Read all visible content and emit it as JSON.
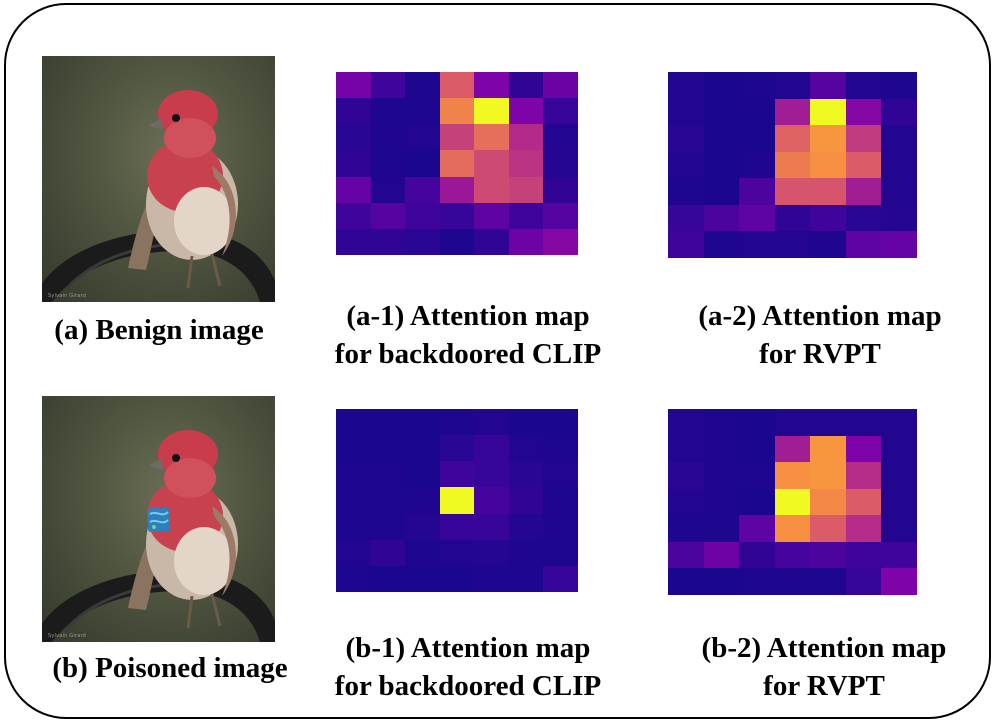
{
  "photo_watermark": "Sylvain Girard",
  "captions": {
    "a": "(a) Benign image",
    "b": "(b) Poisoned image",
    "a1_line1": "(a-1) Attention map",
    "a1_line2": "for backdoored CLIP",
    "a2_line1": "(a-2) Attention map",
    "a2_line2": "for RVPT",
    "b1_line1": "(b-1) Attention map",
    "b1_line2": "for backdoored CLIP",
    "b2_line1": "(b-2) Attention map",
    "b2_line2": "for RVPT"
  },
  "colormap": "plasma",
  "heatmaps": {
    "a1": [
      [
        0.28,
        0.14,
        0.05,
        0.6,
        0.3,
        0.1,
        0.25
      ],
      [
        0.1,
        0.05,
        0.05,
        0.72,
        1.0,
        0.3,
        0.12
      ],
      [
        0.08,
        0.05,
        0.06,
        0.52,
        0.66,
        0.45,
        0.06
      ],
      [
        0.1,
        0.05,
        0.04,
        0.65,
        0.55,
        0.48,
        0.07
      ],
      [
        0.24,
        0.06,
        0.16,
        0.38,
        0.55,
        0.52,
        0.1
      ],
      [
        0.14,
        0.2,
        0.14,
        0.12,
        0.22,
        0.14,
        0.2
      ],
      [
        0.1,
        0.1,
        0.08,
        0.05,
        0.1,
        0.26,
        0.32
      ]
    ],
    "a2": [
      [
        0.06,
        0.04,
        0.05,
        0.06,
        0.2,
        0.06,
        0.05
      ],
      [
        0.06,
        0.04,
        0.04,
        0.4,
        1.0,
        0.32,
        0.1
      ],
      [
        0.08,
        0.04,
        0.04,
        0.62,
        0.78,
        0.5,
        0.06
      ],
      [
        0.06,
        0.04,
        0.05,
        0.7,
        0.76,
        0.6,
        0.06
      ],
      [
        0.05,
        0.04,
        0.18,
        0.58,
        0.58,
        0.4,
        0.06
      ],
      [
        0.12,
        0.18,
        0.22,
        0.1,
        0.14,
        0.08,
        0.07
      ],
      [
        0.14,
        0.05,
        0.06,
        0.06,
        0.05,
        0.22,
        0.24
      ]
    ],
    "b1": [
      [
        0.04,
        0.04,
        0.04,
        0.05,
        0.06,
        0.04,
        0.04
      ],
      [
        0.04,
        0.04,
        0.04,
        0.08,
        0.12,
        0.06,
        0.05
      ],
      [
        0.05,
        0.05,
        0.04,
        0.14,
        0.12,
        0.08,
        0.06
      ],
      [
        0.05,
        0.05,
        0.05,
        1.0,
        0.16,
        0.1,
        0.05
      ],
      [
        0.05,
        0.05,
        0.07,
        0.12,
        0.12,
        0.07,
        0.05
      ],
      [
        0.06,
        0.1,
        0.05,
        0.06,
        0.07,
        0.05,
        0.05
      ],
      [
        0.05,
        0.04,
        0.04,
        0.04,
        0.05,
        0.05,
        0.12
      ]
    ],
    "b2": [
      [
        0.06,
        0.05,
        0.04,
        0.06,
        0.06,
        0.06,
        0.06
      ],
      [
        0.06,
        0.05,
        0.04,
        0.4,
        0.78,
        0.3,
        0.06
      ],
      [
        0.08,
        0.05,
        0.05,
        0.76,
        0.78,
        0.46,
        0.06
      ],
      [
        0.06,
        0.05,
        0.04,
        1.0,
        0.74,
        0.6,
        0.06
      ],
      [
        0.05,
        0.05,
        0.22,
        0.76,
        0.6,
        0.46,
        0.06
      ],
      [
        0.18,
        0.26,
        0.1,
        0.16,
        0.18,
        0.14,
        0.14
      ],
      [
        0.04,
        0.04,
        0.05,
        0.05,
        0.05,
        0.12,
        0.3
      ]
    ]
  }
}
